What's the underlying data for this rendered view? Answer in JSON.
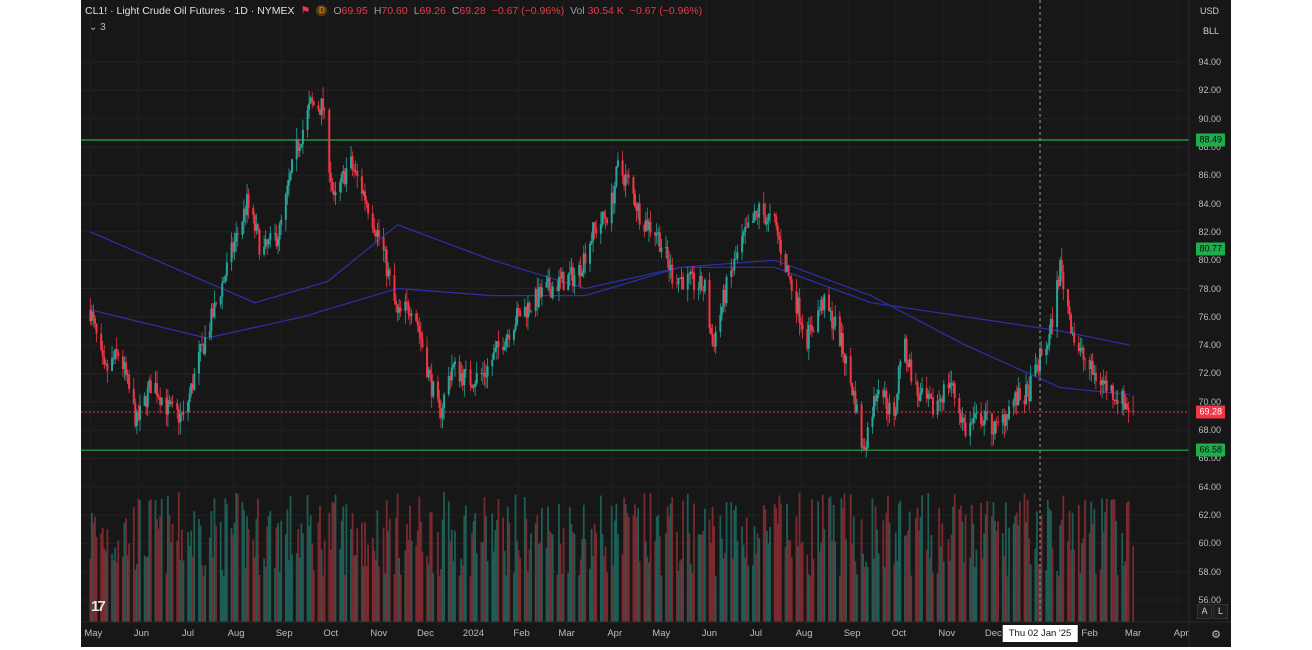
{
  "header": {
    "symbol": "CL1! · Light Crude Oil Futures · 1D · NYMEX",
    "open_label": "O",
    "open_value": "69.95",
    "high_label": "H",
    "high_value": "70.60",
    "low_label": "L",
    "low_value": "69.26",
    "close_label": "C",
    "close_value": "69.28",
    "change": "−0.67 (−0.96%)",
    "vol_label": "Vol",
    "vol_value": "30.54 K",
    "vol_change": "−0.67 (−0.96%)",
    "indicator_count": "3"
  },
  "currency": "USD",
  "unit_label": "BLL",
  "crosshair_date": "Thu 02 Jan '25",
  "scale_buttons": [
    "A",
    "L"
  ],
  "colors": {
    "up": "#26a69a",
    "down": "#f23645",
    "hline": "#1fae4b",
    "ma": "#2f2fae",
    "last_price": "#f23645",
    "background": "#171717"
  },
  "icons": [
    "flag-icon",
    "data-icon",
    "tradingview-logo-icon",
    "gear-icon"
  ],
  "chart_data": {
    "type": "candlestick",
    "y_ticks": [
      "94.00",
      "92.00",
      "90.00",
      "88.00",
      "86.00",
      "84.00",
      "82.00",
      "80.00",
      "78.00",
      "76.00",
      "74.00",
      "72.00",
      "70.00",
      "68.00",
      "66.00",
      "64.00",
      "62.00",
      "60.00",
      "58.00",
      "56.00"
    ],
    "ylim": [
      55,
      96
    ],
    "x_ticks": [
      "May",
      "Jun",
      "Jul",
      "Aug",
      "Sep",
      "Oct",
      "Nov",
      "Dec",
      "2024",
      "Feb",
      "Mar",
      "Apr",
      "May",
      "Jun",
      "Jul",
      "Aug",
      "Sep",
      "Oct",
      "Nov",
      "Dec",
      "Feb",
      "Mar",
      "Apr"
    ],
    "price_path": [
      [
        "2023-05-01",
        76.5
      ],
      [
        "2023-05-10",
        72.0
      ],
      [
        "2023-05-20",
        73.5
      ],
      [
        "2023-05-31",
        68.5
      ],
      [
        "2023-06-10",
        71.5
      ],
      [
        "2023-06-20",
        69.5
      ],
      [
        "2023-06-30",
        68.8
      ],
      [
        "2023-07-10",
        73.0
      ],
      [
        "2023-07-20",
        76.5
      ],
      [
        "2023-07-31",
        80.5
      ],
      [
        "2023-08-10",
        84.0
      ],
      [
        "2023-08-20",
        80.5
      ],
      [
        "2023-08-31",
        82.0
      ],
      [
        "2023-09-10",
        87.5
      ],
      [
        "2023-09-20",
        91.0
      ],
      [
        "2023-09-28",
        90.8
      ],
      [
        "2023-10-05",
        84.0
      ],
      [
        "2023-10-15",
        87.0
      ],
      [
        "2023-10-25",
        84.5
      ],
      [
        "2023-11-05",
        81.0
      ],
      [
        "2023-11-15",
        76.0
      ],
      [
        "2023-11-25",
        77.0
      ],
      [
        "2023-12-05",
        72.0
      ],
      [
        "2023-12-12",
        69.0
      ],
      [
        "2023-12-20",
        72.5
      ],
      [
        "2023-12-31",
        71.5
      ],
      [
        "2024-01-10",
        72.0
      ],
      [
        "2024-01-20",
        74.0
      ],
      [
        "2024-01-31",
        76.0
      ],
      [
        "2024-02-10",
        77.0
      ],
      [
        "2024-02-20",
        78.0
      ],
      [
        "2024-02-29",
        78.5
      ],
      [
        "2024-03-10",
        79.0
      ],
      [
        "2024-03-20",
        82.0
      ],
      [
        "2024-03-31",
        83.5
      ],
      [
        "2024-04-05",
        86.5
      ],
      [
        "2024-04-12",
        85.5
      ],
      [
        "2024-04-20",
        83.0
      ],
      [
        "2024-04-30",
        82.0
      ],
      [
        "2024-05-10",
        79.0
      ],
      [
        "2024-05-20",
        78.5
      ],
      [
        "2024-05-31",
        78.0
      ],
      [
        "2024-06-05",
        74.0
      ],
      [
        "2024-06-15",
        78.5
      ],
      [
        "2024-06-25",
        81.5
      ],
      [
        "2024-07-05",
        83.5
      ],
      [
        "2024-07-15",
        82.5
      ],
      [
        "2024-07-25",
        78.5
      ],
      [
        "2024-08-05",
        74.5
      ],
      [
        "2024-08-15",
        77.0
      ],
      [
        "2024-08-25",
        75.0
      ],
      [
        "2024-09-05",
        70.0
      ],
      [
        "2024-09-10",
        66.5
      ],
      [
        "2024-09-20",
        71.5
      ],
      [
        "2024-09-30",
        68.5
      ],
      [
        "2024-10-05",
        74.5
      ],
      [
        "2024-10-15",
        70.5
      ],
      [
        "2024-10-25",
        69.5
      ],
      [
        "2024-11-05",
        71.5
      ],
      [
        "2024-11-15",
        68.0
      ],
      [
        "2024-11-25",
        69.0
      ],
      [
        "2024-12-05",
        68.0
      ],
      [
        "2024-12-15",
        70.0
      ],
      [
        "2024-12-25",
        70.5
      ],
      [
        "2025-01-02",
        73.0
      ],
      [
        "2025-01-08",
        74.5
      ],
      [
        "2025-01-15",
        79.5
      ],
      [
        "2025-01-25",
        74.0
      ],
      [
        "2025-02-05",
        72.0
      ],
      [
        "2025-02-15",
        71.0
      ],
      [
        "2025-02-25",
        70.0
      ],
      [
        "2025-03-03",
        69.28
      ]
    ],
    "moving_averages": [
      {
        "points": [
          [
            "2023-05-01",
            82.0
          ],
          [
            "2023-08-15",
            77.0
          ],
          [
            "2023-10-01",
            78.5
          ],
          [
            "2023-11-15",
            82.5
          ],
          [
            "2024-01-15",
            80.0
          ],
          [
            "2024-03-15",
            78.0
          ],
          [
            "2024-05-15",
            79.5
          ],
          [
            "2024-07-15",
            80.0
          ],
          [
            "2024-09-15",
            77.5
          ],
          [
            "2024-11-15",
            74.0
          ],
          [
            "2025-01-15",
            71.0
          ],
          [
            "2025-03-01",
            70.5
          ]
        ]
      },
      {
        "points": [
          [
            "2023-05-01",
            76.5
          ],
          [
            "2023-07-15",
            74.5
          ],
          [
            "2023-09-15",
            76.0
          ],
          [
            "2023-11-15",
            78.0
          ],
          [
            "2024-01-15",
            77.5
          ],
          [
            "2024-03-15",
            77.5
          ],
          [
            "2024-05-15",
            79.5
          ],
          [
            "2024-07-15",
            79.5
          ],
          [
            "2024-09-15",
            77.0
          ],
          [
            "2024-11-15",
            76.0
          ],
          [
            "2025-01-15",
            75.0
          ],
          [
            "2025-03-01",
            74.0
          ]
        ]
      }
    ],
    "horizontal_lines": [
      {
        "value": "88.49",
        "y": 88.49
      },
      {
        "value": "80.77",
        "y": 80.77
      },
      {
        "value": "66.58",
        "y": 66.58
      }
    ],
    "last_price": {
      "value": "69.28",
      "y": 69.28
    },
    "grid": true
  }
}
